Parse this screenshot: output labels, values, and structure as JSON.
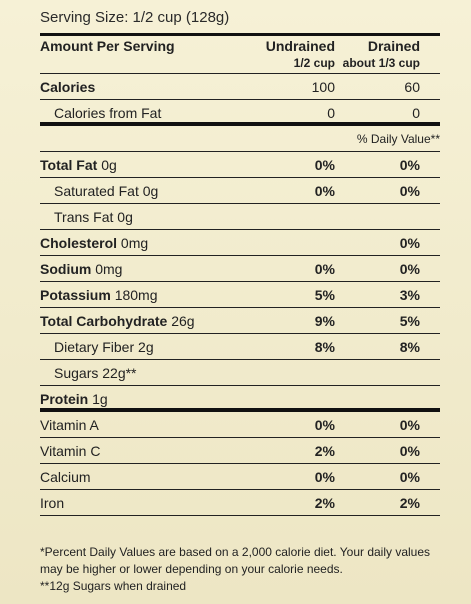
{
  "serving_size": "Serving Size: 1/2 cup (128g)",
  "header": {
    "label": "Amount Per Serving",
    "col1_title": "Undrained",
    "col1_sub": "1/2 cup",
    "col2_title": "Drained",
    "col2_sub": "about 1/3 cup"
  },
  "calories": {
    "label": "Calories",
    "v1": "100",
    "v2": "60"
  },
  "calories_fat": {
    "label": "Calories from Fat",
    "v1": "0",
    "v2": "0"
  },
  "dv_header": "% Daily Value**",
  "nutrients": [
    {
      "name": "Total Fat",
      "amount": "0g",
      "v1": "0%",
      "v2": "0%"
    },
    {
      "name": "Saturated Fat",
      "amount": "0g",
      "v1": "0%",
      "v2": "0%"
    },
    {
      "name": "Trans Fat",
      "amount": "0g",
      "v1": "",
      "v2": ""
    },
    {
      "name": "Cholesterol",
      "amount": "0mg",
      "v1": "",
      "v2": "0%"
    },
    {
      "name": "Sodium",
      "amount": "0mg",
      "v1": "0%",
      "v2": "0%"
    },
    {
      "name": "Potassium",
      "amount": "180mg",
      "v1": "5%",
      "v2": "3%"
    },
    {
      "name": "Total Carbohydrate",
      "amount": "26g",
      "v1": "9%",
      "v2": "5%"
    },
    {
      "name": "Dietary Fiber",
      "amount": "2g",
      "v1": "8%",
      "v2": "8%"
    },
    {
      "name": "Sugars",
      "amount": "22g**",
      "v1": "",
      "v2": ""
    },
    {
      "name": "Protein",
      "amount": "1g",
      "v1": "",
      "v2": ""
    }
  ],
  "vitamins": [
    {
      "name": "Vitamin A",
      "v1": "0%",
      "v2": "0%"
    },
    {
      "name": "Vitamin C",
      "v1": "2%",
      "v2": "0%"
    },
    {
      "name": "Calcium",
      "v1": "0%",
      "v2": "0%"
    },
    {
      "name": "Iron",
      "v1": "2%",
      "v2": "2%"
    }
  ],
  "footnotes": [
    "*Percent Daily Values are based on a 2,000 calorie diet. Your daily values",
    "may be higher or lower depending on your calorie needs.",
    "**12g Sugars when drained"
  ]
}
